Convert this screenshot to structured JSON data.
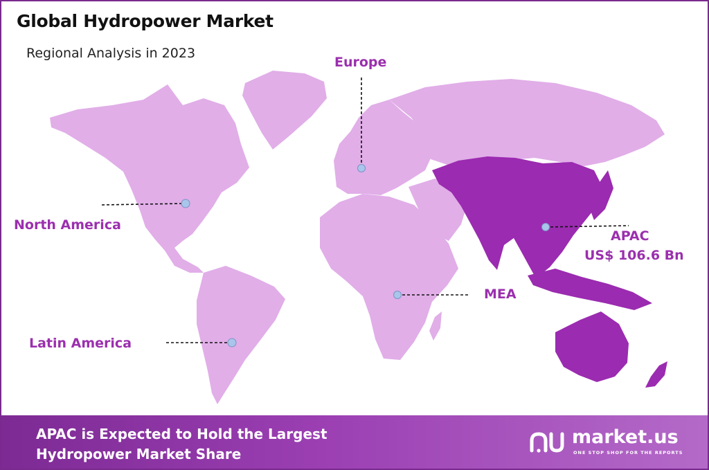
{
  "header": {
    "title": "Global Hydropower Market",
    "subtitle": "Regional Analysis in 2023"
  },
  "regions": [
    {
      "key": "europe",
      "label": "Europe"
    },
    {
      "key": "north_america",
      "label": "North America"
    },
    {
      "key": "latin_america",
      "label": "Latin America"
    },
    {
      "key": "mea",
      "label": "MEA"
    },
    {
      "key": "apac",
      "label": "APAC",
      "value_label": "US$ 106.6 Bn",
      "highlighted": true
    }
  ],
  "footer": {
    "line1": "APAC is Expected to Hold the Largest",
    "line2": "Hydropower Market Share"
  },
  "brand": {
    "name": "market.us",
    "tagline": "ONE STOP SHOP FOR THE REPORTS"
  },
  "colors": {
    "land": "#e1aee8",
    "land_highlight": "#9b2bb0",
    "label": "#9b2fae",
    "marker": "#a9c5ea",
    "footer_start": "#7d2a94",
    "footer_end": "#b46ac8"
  }
}
